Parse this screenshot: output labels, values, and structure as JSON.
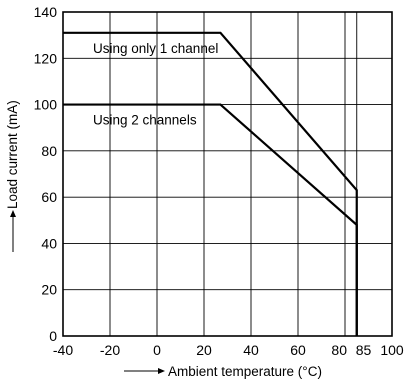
{
  "chart_data": {
    "type": "line",
    "title": "",
    "xlabel": "Ambient temperature (°C)",
    "ylabel": "Load current (mA)",
    "xlim": [
      -40,
      100
    ],
    "ylim": [
      0,
      140
    ],
    "x_ticks": [
      -40,
      -20,
      0,
      20,
      40,
      60,
      80,
      85,
      100
    ],
    "x_tick_labels": [
      "-40",
      "-20",
      "0",
      "20",
      "40",
      "60",
      "80",
      "85",
      "100"
    ],
    "y_ticks": [
      0,
      20,
      40,
      60,
      80,
      100,
      120,
      140
    ],
    "grid": true,
    "series": [
      {
        "name": "Using only 1 channel",
        "x": [
          -40,
          27,
          85,
          85
        ],
        "y": [
          131,
          131,
          63,
          0
        ]
      },
      {
        "name": "Using 2 channels",
        "x": [
          -40,
          27,
          85,
          85
        ],
        "y": [
          100,
          100,
          48,
          0
        ]
      }
    ],
    "colors": {
      "line": "#000000",
      "grid": "#000000",
      "background": "#ffffff"
    }
  }
}
